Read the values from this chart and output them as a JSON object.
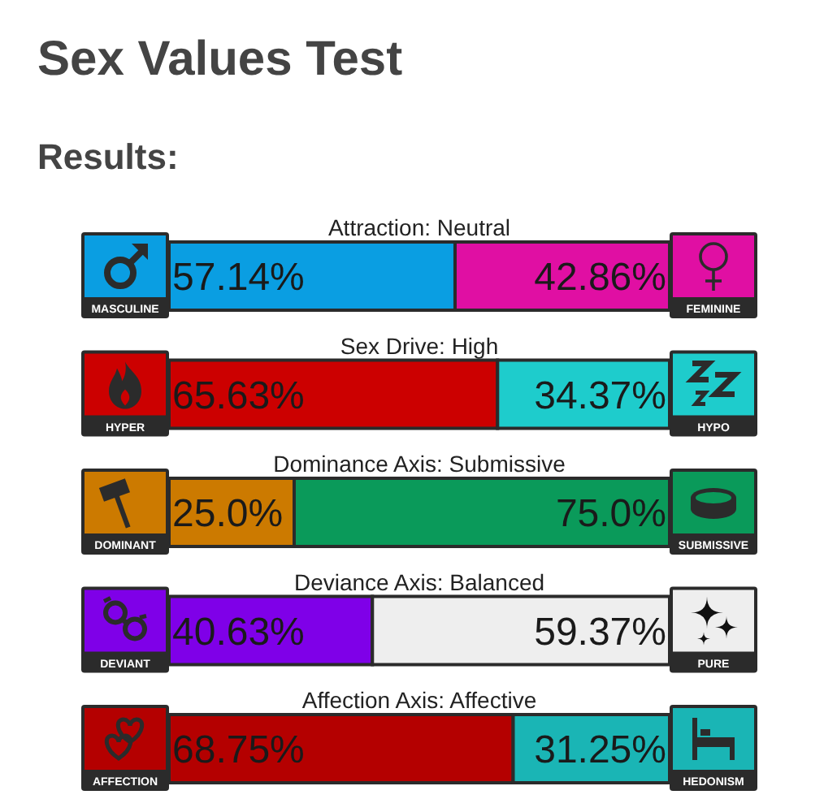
{
  "chart_data": [
    {
      "type": "other",
      "title": "Sex Values Test",
      "subtitle": "Results:"
    },
    {
      "type": "bar",
      "orientation": "horizontal",
      "stacked": true,
      "title": "Attraction: Neutral",
      "categories": [
        null
      ],
      "xlim": [
        0,
        100
      ],
      "series": [
        {
          "name": "MASCULINE",
          "color": "#0a9ee2",
          "values": [
            57.14
          ],
          "value_labels": [
            "57.14%"
          ]
        },
        {
          "name": "FEMININE",
          "color": "#e00fa3",
          "values": [
            42.86
          ],
          "value_labels": [
            "42.86%"
          ]
        }
      ]
    },
    {
      "type": "bar",
      "orientation": "horizontal",
      "stacked": true,
      "title": "Sex Drive: High",
      "categories": [
        null
      ],
      "xlim": [
        0,
        100
      ],
      "series": [
        {
          "name": "HYPER",
          "color": "#cc0000",
          "values": [
            65.63
          ],
          "value_labels": [
            "65.63%"
          ]
        },
        {
          "name": "HYPO",
          "color": "#1ecccc",
          "values": [
            34.37
          ],
          "value_labels": [
            "34.37%"
          ]
        }
      ]
    },
    {
      "type": "bar",
      "orientation": "horizontal",
      "stacked": true,
      "title": "Dominance Axis: Submissive",
      "categories": [
        null
      ],
      "xlim": [
        0,
        100
      ],
      "series": [
        {
          "name": "DOMINANT",
          "color": "#cc7a00",
          "values": [
            25.0
          ],
          "value_labels": [
            "25.0%"
          ]
        },
        {
          "name": "SUBMISSIVE",
          "color": "#0a9a5a",
          "values": [
            75.0
          ],
          "value_labels": [
            "75.0%"
          ]
        }
      ]
    },
    {
      "type": "bar",
      "orientation": "horizontal",
      "stacked": true,
      "title": "Deviance Axis: Balanced",
      "categories": [
        null
      ],
      "xlim": [
        0,
        100
      ],
      "series": [
        {
          "name": "DEVIANT",
          "color": "#7f00e8",
          "values": [
            40.63
          ],
          "value_labels": [
            "40.63%"
          ]
        },
        {
          "name": "PURE",
          "color": "#eeeeee",
          "values": [
            59.37
          ],
          "value_labels": [
            "59.37%"
          ]
        }
      ]
    },
    {
      "type": "bar",
      "orientation": "horizontal",
      "stacked": true,
      "title": "Affection Axis: Affective",
      "categories": [
        null
      ],
      "xlim": [
        0,
        100
      ],
      "series": [
        {
          "name": "AFFECTION",
          "color": "#b40000",
          "values": [
            68.75
          ],
          "value_labels": [
            "68.75%"
          ]
        },
        {
          "name": "HEDONISM",
          "color": "#1ab5b5",
          "values": [
            31.25
          ],
          "value_labels": [
            "31.25%"
          ]
        }
      ]
    }
  ]
}
